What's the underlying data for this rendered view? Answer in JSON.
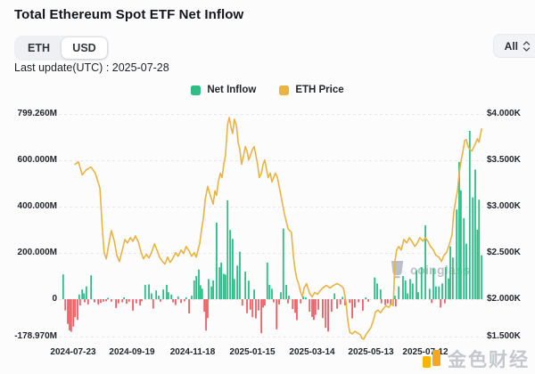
{
  "header": {
    "title": "Total Ethereum Spot ETF Net Inflow",
    "currency_toggle": {
      "options": [
        "ETH",
        "USD"
      ],
      "selected": "USD"
    },
    "range_select": {
      "value": "All"
    },
    "last_update": "Last update(UTC) : 2025-07-28"
  },
  "legend": {
    "items": [
      {
        "label": "Net Inflow",
        "color": "#2ebd85"
      },
      {
        "label": "ETH Price",
        "color": "#eab342"
      }
    ]
  },
  "watermarks": {
    "coinglass": "coinglass",
    "jinse": "金色财经"
  },
  "colors": {
    "bar_positive": "#2ebd85",
    "bar_negative": "#f15e65",
    "price_line": "#eab342",
    "grid": "#e7e9ee"
  },
  "chart_data": {
    "type": "combo-bar-line",
    "title": "Total Ethereum Spot ETF Net Inflow",
    "grid": "horizontal-dashed",
    "legend_position": "top-center",
    "series": [
      {
        "name": "Net Inflow",
        "type": "bar",
        "unit": "USD millions",
        "axis": "left"
      },
      {
        "name": "ETH Price",
        "type": "line",
        "unit": "USD",
        "axis": "right"
      }
    ],
    "y_axis_left": {
      "range": [
        -178.97,
        799.26
      ],
      "ticks": [
        {
          "v": 799.26,
          "label": "799.260M"
        },
        {
          "v": 600,
          "label": "600.000M"
        },
        {
          "v": 400,
          "label": "400.000M"
        },
        {
          "v": 200,
          "label": "200.000M"
        },
        {
          "v": 0,
          "label": "0"
        },
        {
          "v": -178.97,
          "label": "-178.970M"
        }
      ]
    },
    "y_axis_right": {
      "range": [
        1500,
        4000
      ],
      "ticks": [
        {
          "v": 4000,
          "label": "$4.000K"
        },
        {
          "v": 3500,
          "label": "$3.500K"
        },
        {
          "v": 3000,
          "label": "$3.000K"
        },
        {
          "v": 2500,
          "label": "$2.500K"
        },
        {
          "v": 2000,
          "label": "$2.000K"
        },
        {
          "v": 1500,
          "label": "$1.500K"
        }
      ]
    },
    "x_axis": {
      "range": [
        "2024-07-23",
        "2025-07-28"
      ],
      "ticks": [
        {
          "t": 0.03,
          "label": "2024-07-23"
        },
        {
          "t": 0.169,
          "label": "2024-09-19"
        },
        {
          "t": 0.312,
          "label": "2024-11-18"
        },
        {
          "t": 0.454,
          "label": "2025-01-15"
        },
        {
          "t": 0.595,
          "label": "2025-03-14"
        },
        {
          "t": 0.734,
          "label": "2025-05-13"
        },
        {
          "t": 0.863,
          "label": "2025-07-12"
        }
      ]
    },
    "net_inflow_bars": [
      [
        0.006,
        107
      ],
      [
        0.011,
        -54
      ],
      [
        0.017,
        -118
      ],
      [
        0.021,
        -150
      ],
      [
        0.025,
        -156
      ],
      [
        0.03,
        -131
      ],
      [
        0.034,
        -86
      ],
      [
        0.04,
        -99
      ],
      [
        0.044,
        20
      ],
      [
        0.046,
        -30
      ],
      [
        0.051,
        42
      ],
      [
        0.055,
        25
      ],
      [
        0.057,
        -15
      ],
      [
        0.061,
        55
      ],
      [
        0.065,
        -25
      ],
      [
        0.072,
        103
      ],
      [
        0.08,
        -15
      ],
      [
        0.089,
        -25
      ],
      [
        0.095,
        -18
      ],
      [
        0.101,
        -12
      ],
      [
        0.108,
        -10
      ],
      [
        0.112,
        6
      ],
      [
        0.12,
        -12
      ],
      [
        0.131,
        -42
      ],
      [
        0.137,
        -20
      ],
      [
        0.146,
        -15
      ],
      [
        0.15,
        8
      ],
      [
        0.156,
        -22
      ],
      [
        0.162,
        -12
      ],
      [
        0.171,
        -55
      ],
      [
        0.179,
        -20
      ],
      [
        0.188,
        -30
      ],
      [
        0.192,
        -10
      ],
      [
        0.2,
        62
      ],
      [
        0.209,
        64
      ],
      [
        0.215,
        25
      ],
      [
        0.219,
        -45
      ],
      [
        0.226,
        38
      ],
      [
        0.232,
        15
      ],
      [
        0.236,
        -12
      ],
      [
        0.243,
        42
      ],
      [
        0.251,
        62
      ],
      [
        0.255,
        30
      ],
      [
        0.262,
        20
      ],
      [
        0.266,
        -15
      ],
      [
        0.272,
        -28
      ],
      [
        0.278,
        12
      ],
      [
        0.285,
        -18
      ],
      [
        0.293,
        -10
      ],
      [
        0.297,
        8
      ],
      [
        0.304,
        -68
      ],
      [
        0.31,
        15
      ],
      [
        0.316,
        81
      ],
      [
        0.321,
        100
      ],
      [
        0.327,
        128
      ],
      [
        0.331,
        60
      ],
      [
        0.335,
        45
      ],
      [
        0.34,
        -60
      ],
      [
        0.344,
        -150
      ],
      [
        0.348,
        -90
      ],
      [
        0.35,
        87
      ],
      [
        0.357,
        55
      ],
      [
        0.361,
        81
      ],
      [
        0.369,
        331
      ],
      [
        0.376,
        138
      ],
      [
        0.38,
        158
      ],
      [
        0.386,
        110
      ],
      [
        0.39,
        106
      ],
      [
        0.395,
        427
      ],
      [
        0.401,
        299
      ],
      [
        0.407,
        260
      ],
      [
        0.411,
        87
      ],
      [
        0.418,
        145
      ],
      [
        0.424,
        205
      ],
      [
        0.43,
        -30
      ],
      [
        0.437,
        119
      ],
      [
        0.441,
        -67
      ],
      [
        0.445,
        80
      ],
      [
        0.449,
        -50
      ],
      [
        0.454,
        -86
      ],
      [
        0.458,
        42
      ],
      [
        0.462,
        -92
      ],
      [
        0.468,
        -54
      ],
      [
        0.475,
        -163
      ],
      [
        0.479,
        -40
      ],
      [
        0.483,
        -30
      ],
      [
        0.489,
        158
      ],
      [
        0.494,
        62
      ],
      [
        0.5,
        45
      ],
      [
        0.504,
        -15
      ],
      [
        0.511,
        -144
      ],
      [
        0.517,
        -25
      ],
      [
        0.521,
        30
      ],
      [
        0.527,
        305
      ],
      [
        0.534,
        62
      ],
      [
        0.538,
        -20
      ],
      [
        0.54,
        15
      ],
      [
        0.549,
        -47
      ],
      [
        0.555,
        -65
      ],
      [
        0.559,
        -100
      ],
      [
        0.568,
        -20
      ],
      [
        0.574,
        12
      ],
      [
        0.58,
        8
      ],
      [
        0.589,
        -60
      ],
      [
        0.595,
        -85
      ],
      [
        0.599,
        -99
      ],
      [
        0.603,
        -75
      ],
      [
        0.61,
        -50
      ],
      [
        0.62,
        -90
      ],
      [
        0.627,
        -137
      ],
      [
        0.633,
        -155
      ],
      [
        0.641,
        -60
      ],
      [
        0.648,
        25
      ],
      [
        0.654,
        -45
      ],
      [
        0.662,
        -25
      ],
      [
        0.667,
        10
      ],
      [
        0.673,
        -30
      ],
      [
        0.684,
        -18
      ],
      [
        0.69,
        -92
      ],
      [
        0.696,
        -40
      ],
      [
        0.705,
        -15
      ],
      [
        0.715,
        -55
      ],
      [
        0.722,
        8
      ],
      [
        0.728,
        -12
      ],
      [
        0.743,
        94
      ],
      [
        0.749,
        68
      ],
      [
        0.757,
        42
      ],
      [
        0.759,
        -20
      ],
      [
        0.768,
        -28
      ],
      [
        0.774,
        -20
      ],
      [
        0.781,
        -25
      ],
      [
        0.787,
        -22
      ],
      [
        0.791,
        15
      ],
      [
        0.793,
        -35
      ],
      [
        0.8,
        55
      ],
      [
        0.81,
        100
      ],
      [
        0.816,
        81
      ],
      [
        0.821,
        25
      ],
      [
        0.827,
        87
      ],
      [
        0.833,
        68
      ],
      [
        0.842,
        126
      ],
      [
        0.846,
        30
      ],
      [
        0.854,
        138
      ],
      [
        0.863,
        319
      ],
      [
        0.873,
        45
      ],
      [
        0.878,
        -18
      ],
      [
        0.882,
        132
      ],
      [
        0.888,
        55
      ],
      [
        0.895,
        55
      ],
      [
        0.899,
        -40
      ],
      [
        0.903,
        68
      ],
      [
        0.909,
        -20
      ],
      [
        0.911,
        138
      ],
      [
        0.918,
        90
      ],
      [
        0.922,
        228
      ],
      [
        0.928,
        180
      ],
      [
        0.937,
        388
      ],
      [
        0.943,
        593
      ],
      [
        0.947,
        470
      ],
      [
        0.954,
        350
      ],
      [
        0.96,
        240
      ],
      [
        0.968,
        727
      ],
      [
        0.975,
        440
      ],
      [
        0.981,
        560
      ],
      [
        0.986,
        300
      ],
      [
        0.99,
        430
      ],
      [
        0.996,
        190
      ]
    ],
    "eth_price_line": [
      [
        0.034,
        3450
      ],
      [
        0.042,
        3480
      ],
      [
        0.051,
        3330
      ],
      [
        0.061,
        3390
      ],
      [
        0.072,
        3420
      ],
      [
        0.082,
        3350
      ],
      [
        0.093,
        3180
      ],
      [
        0.099,
        2700
      ],
      [
        0.103,
        2450
      ],
      [
        0.108,
        2380
      ],
      [
        0.114,
        2550
      ],
      [
        0.12,
        2700
      ],
      [
        0.127,
        2580
      ],
      [
        0.133,
        2420
      ],
      [
        0.139,
        2350
      ],
      [
        0.146,
        2480
      ],
      [
        0.152,
        2600
      ],
      [
        0.158,
        2560
      ],
      [
        0.165,
        2620
      ],
      [
        0.171,
        2580
      ],
      [
        0.177,
        2640
      ],
      [
        0.184,
        2570
      ],
      [
        0.19,
        2460
      ],
      [
        0.196,
        2380
      ],
      [
        0.203,
        2430
      ],
      [
        0.209,
        2390
      ],
      [
        0.215,
        2450
      ],
      [
        0.222,
        2550
      ],
      [
        0.228,
        2480
      ],
      [
        0.234,
        2400
      ],
      [
        0.241,
        2350
      ],
      [
        0.247,
        2320
      ],
      [
        0.253,
        2400
      ],
      [
        0.259,
        2340
      ],
      [
        0.266,
        2390
      ],
      [
        0.272,
        2450
      ],
      [
        0.278,
        2410
      ],
      [
        0.285,
        2480
      ],
      [
        0.291,
        2440
      ],
      [
        0.297,
        2520
      ],
      [
        0.304,
        2470
      ],
      [
        0.31,
        2410
      ],
      [
        0.316,
        2450
      ],
      [
        0.321,
        2400
      ],
      [
        0.325,
        2480
      ],
      [
        0.329,
        2550
      ],
      [
        0.333,
        2700
      ],
      [
        0.338,
        2850
      ],
      [
        0.342,
        3050
      ],
      [
        0.348,
        3200
      ],
      [
        0.354,
        3100
      ],
      [
        0.361,
        3000
      ],
      [
        0.365,
        3150
      ],
      [
        0.369,
        3100
      ],
      [
        0.373,
        3250
      ],
      [
        0.378,
        3350
      ],
      [
        0.382,
        3300
      ],
      [
        0.386,
        3450
      ],
      [
        0.39,
        3550
      ],
      [
        0.395,
        3900
      ],
      [
        0.399,
        3980
      ],
      [
        0.403,
        3870
      ],
      [
        0.407,
        3800
      ],
      [
        0.411,
        3960
      ],
      [
        0.416,
        3890
      ],
      [
        0.42,
        3700
      ],
      [
        0.424,
        3620
      ],
      [
        0.428,
        3450
      ],
      [
        0.433,
        3550
      ],
      [
        0.437,
        3650
      ],
      [
        0.441,
        3600
      ],
      [
        0.445,
        3500
      ],
      [
        0.449,
        3550
      ],
      [
        0.454,
        3620
      ],
      [
        0.458,
        3650
      ],
      [
        0.462,
        3550
      ],
      [
        0.466,
        3450
      ],
      [
        0.47,
        3300
      ],
      [
        0.475,
        3350
      ],
      [
        0.479,
        3450
      ],
      [
        0.483,
        3500
      ],
      [
        0.487,
        3400
      ],
      [
        0.491,
        3300
      ],
      [
        0.496,
        3350
      ],
      [
        0.5,
        3250
      ],
      [
        0.504,
        3300
      ],
      [
        0.508,
        3350
      ],
      [
        0.513,
        3300
      ],
      [
        0.517,
        3200
      ],
      [
        0.521,
        3100
      ],
      [
        0.525,
        3000
      ],
      [
        0.529,
        2900
      ],
      [
        0.534,
        2800
      ],
      [
        0.538,
        2720
      ],
      [
        0.542,
        2700
      ],
      [
        0.546,
        2680
      ],
      [
        0.551,
        2400
      ],
      [
        0.555,
        2250
      ],
      [
        0.559,
        2150
      ],
      [
        0.563,
        2100
      ],
      [
        0.568,
        2000
      ],
      [
        0.572,
        1950
      ],
      [
        0.576,
        2050
      ],
      [
        0.582,
        2100
      ],
      [
        0.589,
        1990
      ],
      [
        0.595,
        1950
      ],
      [
        0.601,
        2000
      ],
      [
        0.608,
        1980
      ],
      [
        0.614,
        2020
      ],
      [
        0.62,
        2050
      ],
      [
        0.629,
        2080
      ],
      [
        0.637,
        2050
      ],
      [
        0.646,
        2080
      ],
      [
        0.654,
        2100
      ],
      [
        0.662,
        2080
      ],
      [
        0.669,
        2050
      ],
      [
        0.675,
        1900
      ],
      [
        0.679,
        1700
      ],
      [
        0.684,
        1550
      ],
      [
        0.69,
        1530
      ],
      [
        0.696,
        1560
      ],
      [
        0.703,
        1540
      ],
      [
        0.709,
        1520
      ],
      [
        0.713,
        1480
      ],
      [
        0.717,
        1470
      ],
      [
        0.722,
        1520
      ],
      [
        0.728,
        1560
      ],
      [
        0.734,
        1600
      ],
      [
        0.741,
        1700
      ],
      [
        0.745,
        1780
      ],
      [
        0.751,
        1800
      ],
      [
        0.757,
        1770
      ],
      [
        0.764,
        1820
      ],
      [
        0.77,
        1850
      ],
      [
        0.776,
        1830
      ],
      [
        0.783,
        1870
      ],
      [
        0.787,
        1850
      ],
      [
        0.791,
        2350
      ],
      [
        0.795,
        2480
      ],
      [
        0.8,
        2520
      ],
      [
        0.806,
        2480
      ],
      [
        0.812,
        2600
      ],
      [
        0.819,
        2560
      ],
      [
        0.825,
        2620
      ],
      [
        0.831,
        2580
      ],
      [
        0.838,
        2520
      ],
      [
        0.844,
        2560
      ],
      [
        0.85,
        2620
      ],
      [
        0.857,
        2580
      ],
      [
        0.863,
        2620
      ],
      [
        0.869,
        2580
      ],
      [
        0.875,
        2520
      ],
      [
        0.882,
        2480
      ],
      [
        0.888,
        2420
      ],
      [
        0.895,
        2400
      ],
      [
        0.901,
        2350
      ],
      [
        0.907,
        2420
      ],
      [
        0.913,
        2450
      ],
      [
        0.92,
        2550
      ],
      [
        0.926,
        2650
      ],
      [
        0.93,
        2900
      ],
      [
        0.935,
        3050
      ],
      [
        0.939,
        3150
      ],
      [
        0.943,
        3350
      ],
      [
        0.947,
        3480
      ],
      [
        0.952,
        3600
      ],
      [
        0.956,
        3720
      ],
      [
        0.96,
        3730
      ],
      [
        0.964,
        3650
      ],
      [
        0.968,
        3620
      ],
      [
        0.973,
        3600
      ],
      [
        0.977,
        3640
      ],
      [
        0.981,
        3680
      ],
      [
        0.986,
        3740
      ],
      [
        0.99,
        3700
      ],
      [
        0.996,
        3850
      ]
    ]
  }
}
